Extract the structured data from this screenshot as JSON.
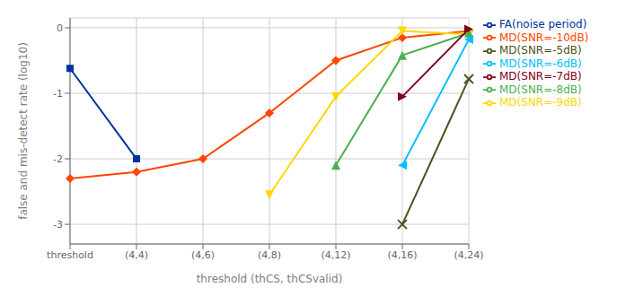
{
  "chart_data": {
    "type": "line",
    "xlabel": "threshold (thCS, thCSvalid)",
    "ylabel": "false and mis-detect rate (log10)",
    "categories": [
      "threshold",
      "(4,4)",
      "(4,6)",
      "(4,8)",
      "(4,12)",
      "(4,16)",
      "(4,24)"
    ],
    "series": [
      {
        "name": "FA(noise period)",
        "color": "#003399",
        "marker": "square",
        "values": [
          -0.62,
          -2.0,
          null,
          null,
          null,
          null,
          null
        ]
      },
      {
        "name": "MD(SNR=-10dB)",
        "color": "#FF4500",
        "marker": "diamond",
        "values": [
          -2.3,
          -2.2,
          -2.0,
          -1.3,
          -0.5,
          -0.15,
          -0.05
        ]
      },
      {
        "name": "MD(SNR=-9dB)",
        "color": "#FFD700",
        "marker": "triangle_down",
        "values": [
          null,
          null,
          null,
          -2.55,
          -1.05,
          -0.05,
          -0.1
        ]
      },
      {
        "name": "MD(SNR=-8dB)",
        "color": "#4CAF50",
        "marker": "triangle_up",
        "values": [
          null,
          null,
          null,
          null,
          -2.1,
          -0.42,
          -0.08
        ]
      },
      {
        "name": "MD(SNR=-7dB)",
        "color": "#800020",
        "marker": "triangle_right",
        "values": [
          null,
          null,
          null,
          null,
          null,
          -1.05,
          -0.02
        ]
      },
      {
        "name": "MD(SNR=-6dB)",
        "color": "#00BFFF",
        "marker": "triangle_left",
        "values": [
          null,
          null,
          null,
          null,
          null,
          -2.1,
          -0.18
        ]
      },
      {
        "name": "MD(SNR=-5dB)",
        "color": "#4B5320",
        "marker": "x",
        "values": [
          null,
          null,
          null,
          null,
          null,
          -3.0,
          -0.78
        ]
      }
    ],
    "ylim": [
      -3.3,
      0.15
    ],
    "yticks": [
      0,
      -1,
      -2,
      -3
    ],
    "grid": true,
    "legend": "right"
  }
}
